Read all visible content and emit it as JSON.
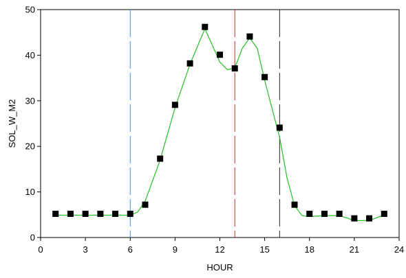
{
  "chart_data": {
    "type": "line",
    "title": "",
    "xlabel": "HOUR",
    "ylabel": "SOL_W_M2",
    "xlim": [
      0,
      24
    ],
    "ylim": [
      0,
      50
    ],
    "x_ticks": [
      "0",
      "3",
      "6",
      "9",
      "12",
      "15",
      "18",
      "21",
      "24"
    ],
    "y_ticks": [
      "0",
      "10",
      "20",
      "30",
      "40",
      "50"
    ],
    "grid": false,
    "legend": "none",
    "colors": {
      "fit_line": "#22c022",
      "markers": "#000000",
      "vline_blue": "#3a86ff",
      "vline_red": "#cc2222",
      "vline_black": "#222222"
    },
    "series": [
      {
        "marker": "square",
        "x": [
          1,
          2,
          3,
          4,
          5,
          6,
          7,
          8,
          9,
          10,
          11,
          12,
          13,
          14,
          15,
          16,
          17,
          18,
          19,
          20,
          21,
          22,
          23
        ],
        "y": [
          5.2,
          5.2,
          5.2,
          5.2,
          5.2,
          5.2,
          7.2,
          17.3,
          29.1,
          38.2,
          46.2,
          40.1,
          37.1,
          44.1,
          35.2,
          24.1,
          7.2,
          5.2,
          5.2,
          5.2,
          4.2,
          4.2,
          5.2
        ]
      }
    ],
    "fit_curve": {
      "x": [
        1,
        2,
        3,
        4,
        5,
        6,
        6.5,
        7,
        8,
        9,
        10,
        11,
        12,
        12.5,
        13,
        13.5,
        14,
        14.5,
        15,
        16,
        16.5,
        17,
        17.5,
        18,
        19,
        20,
        20.5,
        21,
        22,
        23
      ],
      "y": [
        4.9,
        4.9,
        4.9,
        4.9,
        4.9,
        4.9,
        5.6,
        8.0,
        17.0,
        28.5,
        38.0,
        45.8,
        38.5,
        36.8,
        37.2,
        41.5,
        43.8,
        41.5,
        34.5,
        22.0,
        13.0,
        7.0,
        4.8,
        4.6,
        4.8,
        4.8,
        4.3,
        3.7,
        3.7,
        5.0
      ]
    },
    "vertical_lines": [
      {
        "x": 6,
        "color": "blue"
      },
      {
        "x": 13,
        "color": "red"
      },
      {
        "x": 16,
        "color": "black"
      }
    ]
  }
}
